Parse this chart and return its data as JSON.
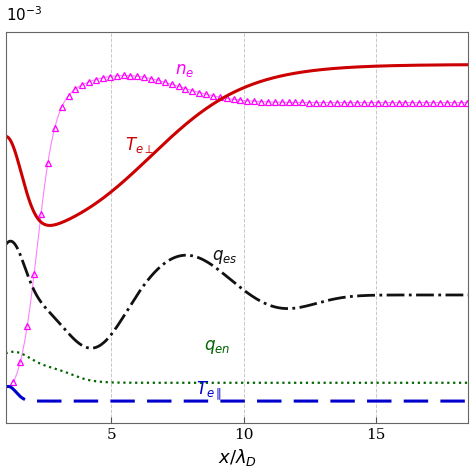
{
  "x_min": 1.0,
  "x_max": 18.5,
  "xlabel": "$x/\\lambda_D$",
  "ylabel_exponent": "$10^{-3}$",
  "xticks": [
    5,
    10,
    15
  ],
  "background_color": "#ffffff",
  "grid_color": "#c8c8c8",
  "curves": {
    "ne": {
      "color": "#ff00ff",
      "label": "$n_e$"
    },
    "Te_perp": {
      "color": "#cc0000",
      "label": "$T_{e\\perp}$"
    },
    "qes": {
      "color": "#111111",
      "label": "$q_{es}$"
    },
    "qen": {
      "color": "#006400",
      "label": "$q_{en}$"
    },
    "Te_par": {
      "color": "#0000cc",
      "label": "$T_{e\\parallel}$"
    }
  }
}
